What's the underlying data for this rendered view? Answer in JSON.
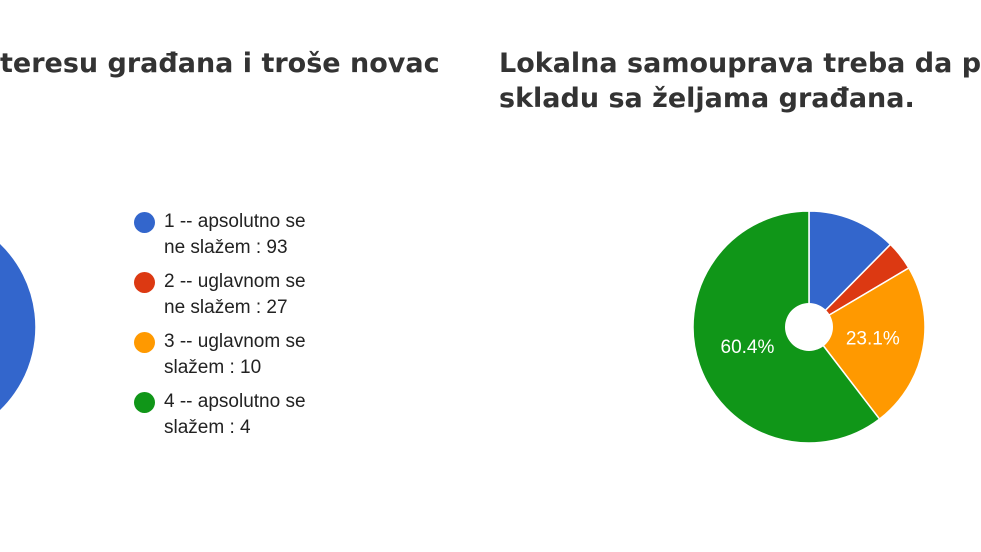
{
  "chart_data": [
    {
      "type": "pie",
      "title": "teresu građana i troše novac",
      "categories": [
        "1 -- apsolutno se ne slažem : 93",
        "2 -- uglavnom se ne slažem : 27",
        "3 -- uglavnom se slažem : 10",
        "4 -- apsolutno se slažem : 4"
      ],
      "values": [
        93,
        27,
        10,
        4
      ],
      "colors": [
        "#3366cc",
        "#dc3912",
        "#ff9900",
        "#109618"
      ]
    },
    {
      "type": "pie",
      "title": [
        "Lokalna samouprava treba da pl",
        "skladu sa željama građana."
      ],
      "values": [
        12.4,
        4.1,
        23.1,
        60.4
      ],
      "value_labels": [
        null,
        null,
        "23.1%",
        "60.4%"
      ],
      "colors": [
        "#3366cc",
        "#dc3912",
        "#ff9900",
        "#109618"
      ]
    }
  ]
}
